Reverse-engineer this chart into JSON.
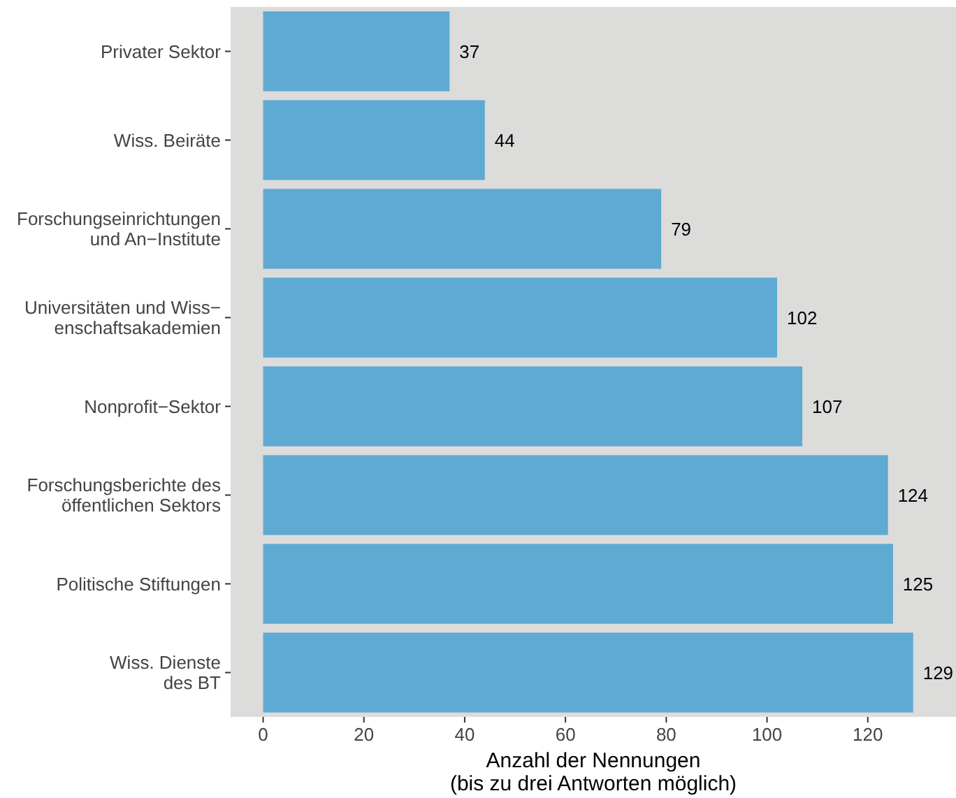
{
  "chart_data": {
    "type": "bar",
    "orientation": "horizontal",
    "categories": [
      "Privater Sektor",
      "Wiss. Beiräte",
      "Forschungseinrichtungen\nund An−Institute",
      "Universitäten und Wiss−\nenschaftsakademien",
      "Nonprofit−Sektor",
      "Forschungsberichte des\nöffentlichen Sektors",
      "Politische Stiftungen",
      "Wiss. Dienste\ndes BT"
    ],
    "values": [
      37,
      44,
      79,
      102,
      107,
      124,
      125,
      129
    ],
    "color": "#5eaad3",
    "xlim": [
      -6.45,
      137.5
    ],
    "xticks": [
      0,
      20,
      40,
      60,
      80,
      100,
      120
    ],
    "xlabel": "Anzahl der Nennungen\n(bis zu drei Antworten möglich)",
    "data_labels": true,
    "grid": false
  }
}
